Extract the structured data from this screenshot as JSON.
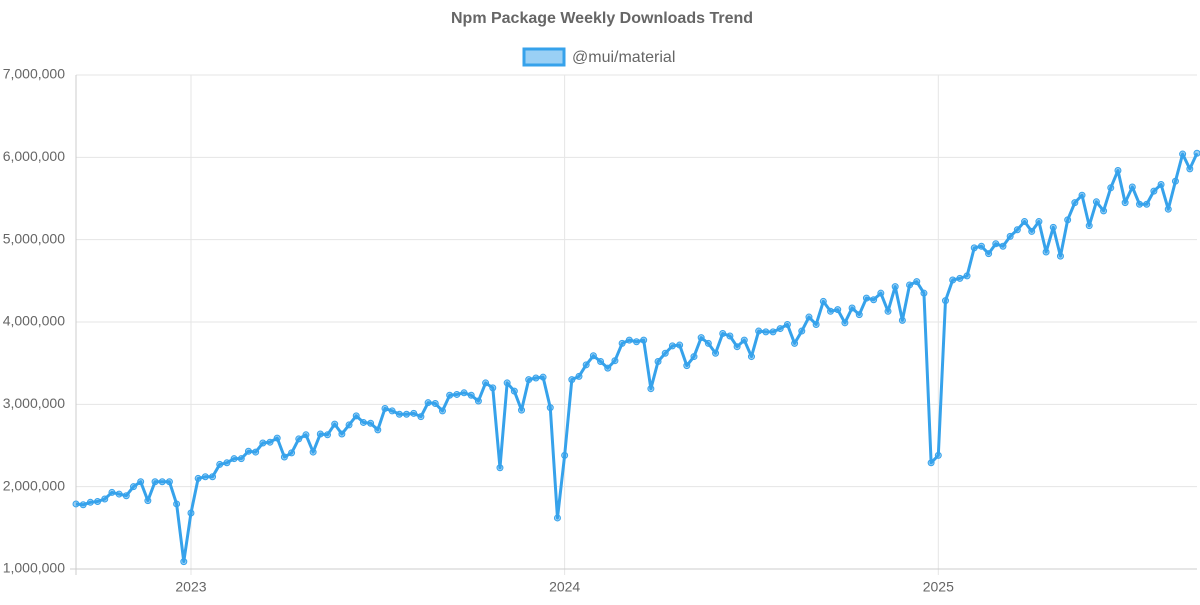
{
  "chart_data": {
    "type": "line",
    "title": "Npm Package Weekly Downloads Trend",
    "categories": [
      null,
      null,
      null,
      null,
      null,
      null,
      null,
      null,
      null,
      null,
      null,
      null,
      null,
      null,
      null,
      null,
      "2023",
      null,
      null,
      null,
      null,
      null,
      null,
      null,
      null,
      null,
      null,
      null,
      null,
      null,
      null,
      null,
      null,
      null,
      null,
      null,
      null,
      null,
      null,
      null,
      null,
      null,
      null,
      null,
      null,
      null,
      null,
      null,
      null,
      null,
      null,
      null,
      null,
      null,
      null,
      null,
      null,
      null,
      null,
      null,
      null,
      null,
      null,
      null,
      null,
      null,
      null,
      null,
      "2024",
      null,
      null,
      null,
      null,
      null,
      null,
      null,
      null,
      null,
      null,
      null,
      null,
      null,
      null,
      null,
      null,
      null,
      null,
      null,
      null,
      null,
      null,
      null,
      null,
      null,
      null,
      null,
      null,
      null,
      null,
      null,
      null,
      null,
      null,
      null,
      null,
      null,
      null,
      null,
      null,
      null,
      null,
      null,
      null,
      null,
      null,
      null,
      null,
      null,
      null,
      null,
      "2025",
      null,
      null,
      null,
      null,
      null,
      null,
      null,
      null,
      null,
      null,
      null,
      null,
      null,
      null,
      null,
      null,
      null,
      null,
      null,
      null,
      null,
      null,
      null,
      null,
      null,
      null,
      null,
      null,
      null,
      null,
      null,
      null,
      null,
      null,
      null,
      null
    ],
    "series": [
      {
        "name": "@mui/material",
        "color": "#36a2eb",
        "fill": "rgba(54,162,235,0.5)",
        "values": [
          1790000,
          1780000,
          1810000,
          1820000,
          1850000,
          1930000,
          1910000,
          1890000,
          2000000,
          2060000,
          1830000,
          2060000,
          2060000,
          2060000,
          1790000,
          1090000,
          1680000,
          2100000,
          2120000,
          2120000,
          2270000,
          2290000,
          2340000,
          2340000,
          2430000,
          2420000,
          2530000,
          2540000,
          2590000,
          2360000,
          2410000,
          2580000,
          2630000,
          2420000,
          2640000,
          2630000,
          2760000,
          2640000,
          2750000,
          2860000,
          2780000,
          2770000,
          2690000,
          2950000,
          2920000,
          2880000,
          2880000,
          2890000,
          2850000,
          3020000,
          3010000,
          2920000,
          3110000,
          3120000,
          3140000,
          3110000,
          3040000,
          3260000,
          3200000,
          2230000,
          3260000,
          3160000,
          2930000,
          3300000,
          3320000,
          3330000,
          2960000,
          1620000,
          2380000,
          3300000,
          3340000,
          3480000,
          3590000,
          3520000,
          3440000,
          3530000,
          3740000,
          3780000,
          3760000,
          3780000,
          3190000,
          3520000,
          3620000,
          3710000,
          3720000,
          3470000,
          3580000,
          3810000,
          3740000,
          3620000,
          3860000,
          3830000,
          3700000,
          3780000,
          3580000,
          3890000,
          3880000,
          3880000,
          3920000,
          3970000,
          3740000,
          3890000,
          4060000,
          3970000,
          4250000,
          4130000,
          4150000,
          3990000,
          4170000,
          4090000,
          4290000,
          4270000,
          4350000,
          4130000,
          4430000,
          4020000,
          4450000,
          4490000,
          4350000,
          2290000,
          2380000,
          4260000,
          4510000,
          4530000,
          4560000,
          4900000,
          4920000,
          4830000,
          4950000,
          4920000,
          5040000,
          5120000,
          5220000,
          5100000,
          5220000,
          4850000,
          5150000,
          4800000,
          5240000,
          5450000,
          5540000,
          5170000,
          5460000,
          5350000,
          5630000,
          5840000,
          5450000,
          5640000,
          5430000,
          5430000,
          5590000,
          5670000,
          5370000,
          5710000,
          6040000,
          5860000,
          6050000
        ]
      }
    ],
    "ylim": [
      1000000,
      7000000
    ],
    "yticks": [
      {
        "value": 1000000,
        "label": "1,000,000"
      },
      {
        "value": 2000000,
        "label": "2,000,000"
      },
      {
        "value": 3000000,
        "label": "3,000,000"
      },
      {
        "value": 4000000,
        "label": "4,000,000"
      },
      {
        "value": 5000000,
        "label": "5,000,000"
      },
      {
        "value": 6000000,
        "label": "6,000,000"
      },
      {
        "value": 7000000,
        "label": "7,000,000"
      }
    ],
    "grid": true,
    "legend": "top"
  }
}
